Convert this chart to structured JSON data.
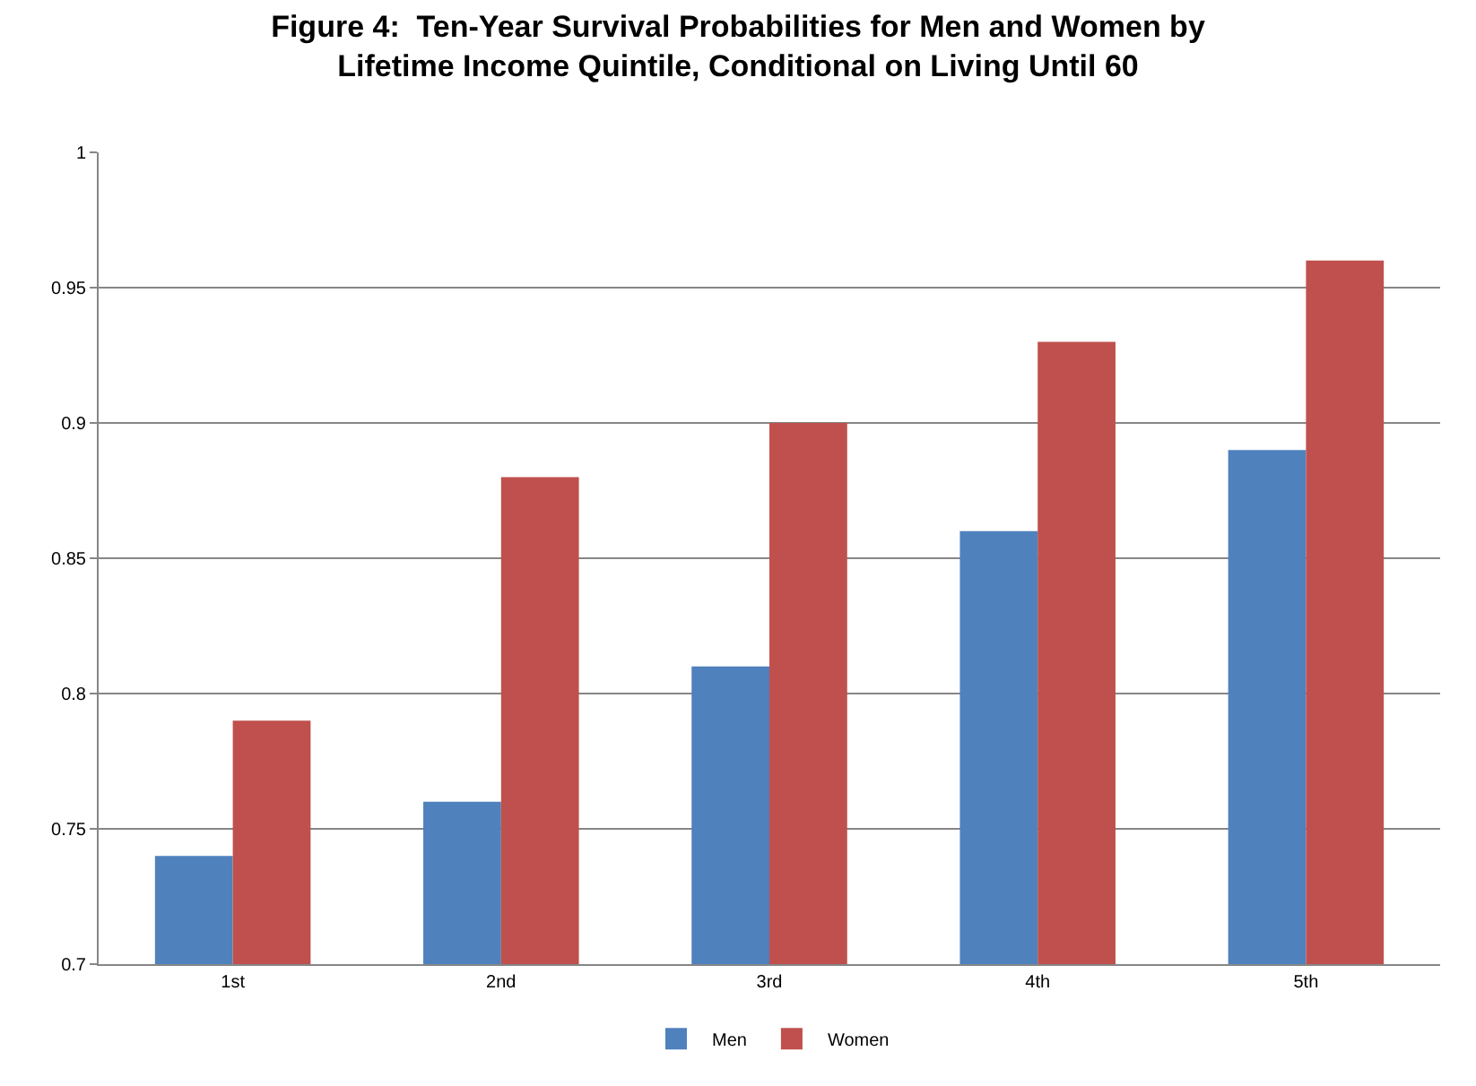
{
  "chart_data": {
    "type": "bar",
    "title": "Figure 4:  Ten-Year Survival Probabilities for Men and Women by\nLifetime Income Quintile, Conditional on Living Until 60",
    "categories": [
      "1st",
      "2nd",
      "3rd",
      "4th",
      "5th"
    ],
    "series": [
      {
        "name": "Men",
        "color": "#4f81bd",
        "values": [
          0.74,
          0.76,
          0.81,
          0.86,
          0.89
        ]
      },
      {
        "name": "Women",
        "color": "#c0504d",
        "values": [
          0.79,
          0.88,
          0.9,
          0.93,
          0.96
        ]
      }
    ],
    "ylim": [
      0.7,
      1
    ],
    "yticks": [
      0.7,
      0.75,
      0.8,
      0.85,
      0.9,
      0.95,
      1
    ],
    "grid": "y",
    "legend": "bottom"
  }
}
